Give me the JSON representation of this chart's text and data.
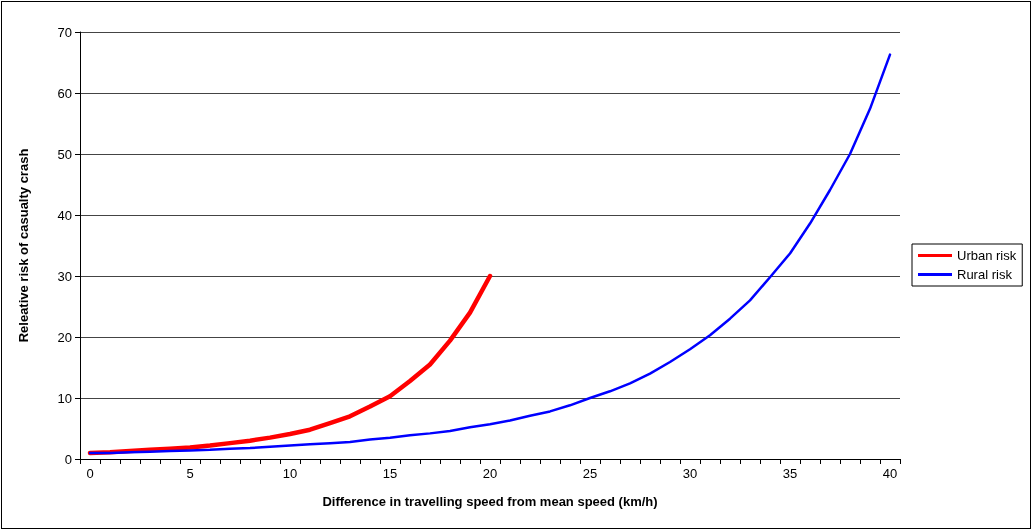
{
  "chart_data": {
    "type": "line",
    "xlabel": "Difference in travelling speed from mean speed (km/h)",
    "ylabel": "Releative risk of casualty crash",
    "categories": [
      "0",
      null,
      null,
      null,
      null,
      "5",
      null,
      null,
      null,
      null,
      "10",
      null,
      null,
      null,
      null,
      "15",
      null,
      null,
      null,
      null,
      "20",
      null,
      null,
      null,
      null,
      "25",
      null,
      null,
      null,
      null,
      "30",
      null,
      null,
      null,
      null,
      "35",
      null,
      null,
      null,
      null,
      "40"
    ],
    "series": [
      {
        "name": "Urban risk",
        "color": "#ff0000",
        "values": [
          1,
          1.1,
          1.3,
          1.5,
          1.7,
          1.9,
          2.2,
          2.6,
          3.0,
          3.5,
          4.1,
          4.8,
          5.9,
          7.0,
          8.6,
          10.3,
          12.8,
          15.5,
          19.4,
          24,
          30,
          null,
          null,
          null,
          null,
          null,
          null,
          null,
          null,
          null,
          null,
          null,
          null,
          null,
          null,
          null,
          null,
          null,
          null,
          null,
          null
        ]
      },
      {
        "name": "Rural risk",
        "color": "#0000ff",
        "values": [
          1,
          1.0,
          1.1,
          1.2,
          1.3,
          1.4,
          1.5,
          1.7,
          1.8,
          2.0,
          2.2,
          2.4,
          2.6,
          2.8,
          3.2,
          3.5,
          3.9,
          4.2,
          4.6,
          5.2,
          5.7,
          6.3,
          7.1,
          7.8,
          8.8,
          10.0,
          11.1,
          12.4,
          14.0,
          15.9,
          18.0,
          20.3,
          23.0,
          26.0,
          29.8,
          33.7,
          38.6,
          44.1,
          50.0,
          57.4,
          66.3
        ]
      }
    ],
    "ylim": [
      0,
      70
    ],
    "yticks": [
      0,
      10,
      20,
      30,
      40,
      50,
      60,
      70
    ],
    "grid": "y",
    "legend": "right",
    "marker": "none",
    "line_style": "solid"
  }
}
